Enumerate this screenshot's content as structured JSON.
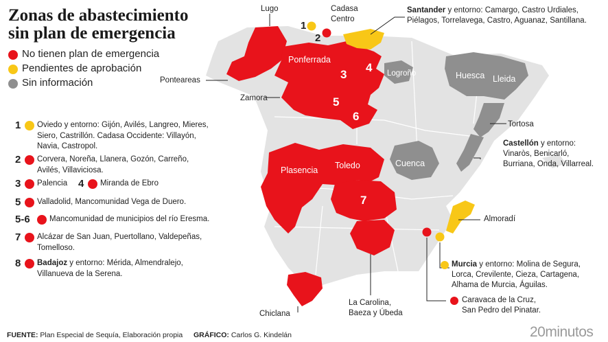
{
  "title": {
    "line1": "Zonas de abastecimiento",
    "line2": "sin plan de emergencia"
  },
  "legend": [
    {
      "color": "red",
      "label": "No tienen plan de emergencia"
    },
    {
      "color": "yellow",
      "label": "Pendientes de aprobación"
    },
    {
      "color": "gray",
      "label": "Sin información"
    }
  ],
  "colors": {
    "red": "#e8131b",
    "yellow": "#f8c717",
    "gray": "#8f8f8f",
    "land": "#e3e3e3",
    "border": "#ffffff"
  },
  "list": [
    {
      "num": "1",
      "color": "yellow",
      "text": "Oviedo y entorno: Gijón, Avilés, Langreo, Mieres, Siero, Castrillón. Cadasa Occidente: Villayón, Navia, Castropol."
    },
    {
      "num": "2",
      "color": "red",
      "text": "Corvera, Noreña, Llanera, Gozón, Carreño, Avilés, Villaviciosa."
    },
    {
      "num": "3",
      "color": "red",
      "text": "Palencia"
    },
    {
      "num": "4",
      "color": "red",
      "text": "Miranda de Ebro"
    },
    {
      "num": "5",
      "color": "red",
      "text": "Valladolid, Mancomunidad Vega de Duero."
    },
    {
      "num": "5-6",
      "color": "red",
      "text": "Mancomunidad de municipios del río Eresma."
    },
    {
      "num": "7",
      "color": "red",
      "text": "Alcázar de San Juan, Puertollano, Valdepeñas, Tomelloso."
    },
    {
      "num": "8",
      "color": "red",
      "bold": "Badajoz",
      "text": " y entorno: Mérida, Almendralejo, Villanueva de la Serena."
    }
  ],
  "map_labels": {
    "lugo": "Lugo",
    "cadasa": "Cadasa\nCentro",
    "santander_bold": "Santander",
    "santander_text": " y entorno: Camargo, Castro Urdiales,\nPiélagos, Torrelavega, Castro, Aguanaz, Santillana.",
    "ponteareas": "Ponteareas",
    "zamora": "Zamora",
    "tortosa": "Tortosa",
    "castellon_bold": "Castellón",
    "castellon_text": " y entorno:\nVinaròs, Benicarló,\nBurriana, Onda, Villarreal.",
    "almoradi": "Almoradí",
    "murcia_bold": "Murcia",
    "murcia_text": " y entorno: Molina de Segura,\nLorca, Crevilente, Cieza, Cartagena,\nAlhama de Murcia, Águilas.",
    "caravaca": "Caravaca de la Cruz,\nSan Pedro del Pinatar.",
    "carolina": "La Carolina,\nBaeza y Úbeda",
    "chiclana": "Chiclana",
    "num1": "1",
    "num2": "2"
  },
  "region_labels": {
    "ponferrada": "Ponferrada",
    "logrono": "Logroño",
    "huesca": "Huesca",
    "lleida": "Lleida",
    "cuenca": "Cuenca",
    "plasencia": "Plasencia",
    "toledo": "Toledo",
    "n3": "3",
    "n4": "4",
    "n5": "5",
    "n6": "6",
    "n7": "7"
  },
  "footer": {
    "fuente_label": "FUENTE:",
    "fuente_text": " Plan Especial de Sequía, Elaboración propia",
    "grafico_label": "GRÁFICO:",
    "grafico_text": " Carlos G. Kindelán",
    "logo": "20minutos"
  }
}
